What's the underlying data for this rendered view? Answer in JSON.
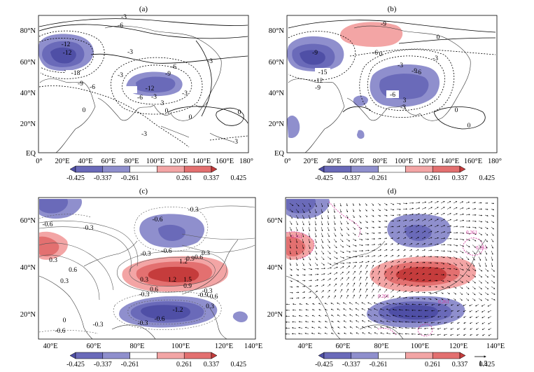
{
  "colorbar": {
    "labels": [
      "-0.425",
      "-0.337",
      "-0.261",
      "0.261",
      "0.337",
      "0.425"
    ],
    "colors": [
      "#4f4fa6",
      "#6a6ab9",
      "#8f8fcd",
      "#ffffff",
      "#f3a5a5",
      "#e37070",
      "#c53c3c"
    ]
  },
  "panels": [
    {
      "id": "a",
      "title": "(a)",
      "yticks": [
        "80°N",
        "60°N",
        "40°N",
        "20°N",
        "EQ"
      ],
      "xticks": [
        "0°",
        "20°E",
        "40°E",
        "60°E",
        "80°E",
        "100°E",
        "120°E",
        "140°E",
        "160°E",
        "180°"
      ],
      "contour_labels": [
        "-3",
        "-6",
        "-12",
        "-18",
        "-12",
        "-9",
        "-6",
        "-3",
        "0",
        "-3",
        "-6",
        "-9",
        "-12",
        "-3",
        "-6",
        "-3",
        "0",
        "3",
        "0",
        "-3",
        "-3",
        "-3",
        "0"
      ]
    },
    {
      "id": "b",
      "title": "(b)",
      "yticks": [
        "80°N",
        "60°N",
        "40°N",
        "20°N",
        "EQ"
      ],
      "xticks": [
        "0°",
        "20°E",
        "40°E",
        "60°E",
        "80°E",
        "100°E",
        "120°E",
        "140°E",
        "160°E",
        "180°"
      ],
      "contour_labels": [
        "-9",
        "0",
        "-6",
        "-3",
        "-9",
        "-15",
        "-12",
        "-9",
        "-6",
        "-3",
        "-6",
        "-9",
        "0",
        "-3",
        "0",
        "0",
        "3"
      ]
    },
    {
      "id": "c",
      "title": "(c)",
      "yticks": [
        "60°N",
        "40°N",
        "20°N"
      ],
      "xticks": [
        "40°E",
        "60°E",
        "80°E",
        "100°E",
        "120°E",
        "140°E"
      ],
      "contour_labels": [
        "-0.3",
        "-0.6",
        "-0.3",
        "-0.6",
        "0.3",
        "0.6",
        "0.3",
        "-0.3",
        "-0.6",
        "1.2",
        "0.9",
        "0.6",
        "0.3",
        "1.5",
        "1.2",
        "0.9",
        "0.3",
        "0.6",
        "-0.3",
        "-0.3",
        "-0.6",
        "-0.9",
        "-1.2",
        "-0.6",
        "-0.3",
        "0",
        "0.3",
        "-0.3",
        "-0.6"
      ]
    },
    {
      "id": "d",
      "title": "(d)",
      "yticks": [
        "60°N",
        "40°N",
        "20°N"
      ],
      "xticks": [
        "40°E",
        "60°E",
        "80°E",
        "100°E",
        "120°E",
        "140°E"
      ],
      "contour_labels": [
        "0.261",
        "0.261",
        "0.261",
        "0.261",
        "0.261"
      ],
      "vector_ref": "1.5"
    }
  ]
}
